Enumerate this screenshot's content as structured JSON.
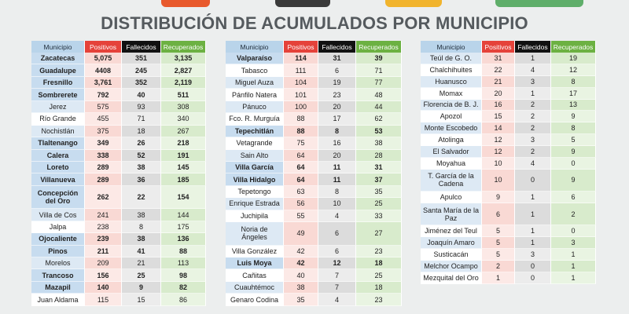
{
  "title": "DISTRIBUCIÓN DE ACUMULADOS POR MUNICIPIO",
  "tables": [
    {
      "headers": [
        "Municipio",
        "Positivos",
        "Fallecidos",
        "Recuperados"
      ],
      "rows": [
        [
          "Zacatecas",
          "5,075",
          "351",
          "3,135"
        ],
        [
          "Guadalupe",
          "4408",
          "245",
          "2,827"
        ],
        [
          "Fresnillo",
          "3,761",
          "352",
          "2,119"
        ],
        [
          "Sombrerete",
          "792",
          "40",
          "511"
        ],
        [
          "Jerez",
          "575",
          "93",
          "308"
        ],
        [
          "Río Grande",
          "455",
          "71",
          "340"
        ],
        [
          "Nochistlán",
          "375",
          "18",
          "267"
        ],
        [
          "Tlaltenango",
          "349",
          "26",
          "218"
        ],
        [
          "Calera",
          "338",
          "52",
          "191"
        ],
        [
          "Loreto",
          "289",
          "38",
          "145"
        ],
        [
          "Villanueva",
          "289",
          "36",
          "185"
        ],
        [
          "Concepción del Oro",
          "262",
          "22",
          "154"
        ],
        [
          "Villa de Cos",
          "241",
          "38",
          "144"
        ],
        [
          "Jalpa",
          "238",
          "8",
          "175"
        ],
        [
          "Ojocaliente",
          "239",
          "38",
          "136"
        ],
        [
          "Pinos",
          "211",
          "41",
          "88"
        ],
        [
          "Morelos",
          "209",
          "21",
          "113"
        ],
        [
          "Trancoso",
          "156",
          "25",
          "98"
        ],
        [
          "Mazapil",
          "140",
          "9",
          "82"
        ],
        [
          "Juan Aldama",
          "115",
          "15",
          "86"
        ]
      ]
    },
    {
      "headers": [
        "Municipio",
        "Positivos",
        "Fallecidos",
        "Recuperados"
      ],
      "rows": [
        [
          "Valparaíso",
          "114",
          "31",
          "39"
        ],
        [
          "Tabasco",
          "111",
          "6",
          "71"
        ],
        [
          "Miguel Auza",
          "104",
          "19",
          "77"
        ],
        [
          "Pánfilo Natera",
          "101",
          "23",
          "48"
        ],
        [
          "Pánuco",
          "100",
          "20",
          "44"
        ],
        [
          "Fco. R. Murguía",
          "88",
          "17",
          "62"
        ],
        [
          "Tepechitlán",
          "88",
          "8",
          "53"
        ],
        [
          "Vetagrande",
          "75",
          "16",
          "38"
        ],
        [
          "Sain Alto",
          "64",
          "20",
          "28"
        ],
        [
          "Villa García",
          "64",
          "11",
          "31"
        ],
        [
          "Villa Hidalgo",
          "64",
          "11",
          "37"
        ],
        [
          "Tepetongo",
          "63",
          "8",
          "35"
        ],
        [
          "Enrique Estrada",
          "56",
          "10",
          "25"
        ],
        [
          "Juchipila",
          "55",
          "4",
          "33"
        ],
        [
          "Noria de Ángeles",
          "49",
          "6",
          "27"
        ],
        [
          "Villa González",
          "42",
          "6",
          "23"
        ],
        [
          "Luis Moya",
          "42",
          "12",
          "18"
        ],
        [
          "Cañitas",
          "40",
          "7",
          "25"
        ],
        [
          "Cuauhtémoc",
          "38",
          "7",
          "18"
        ],
        [
          "Genaro Codina",
          "35",
          "4",
          "23"
        ]
      ]
    },
    {
      "headers": [
        "Municipio",
        "Positivos",
        "Fallecidos",
        "Recuperados"
      ],
      "rows": [
        [
          "Teúl de G. O.",
          "31",
          "1",
          "19"
        ],
        [
          "Chalchihuites",
          "22",
          "4",
          "12"
        ],
        [
          "Huanusco",
          "21",
          "3",
          "8"
        ],
        [
          "Momax",
          "20",
          "1",
          "17"
        ],
        [
          "Florencia de B. J.",
          "16",
          "2",
          "13"
        ],
        [
          "Apozol",
          "15",
          "2",
          "9"
        ],
        [
          "Monte Escobedo",
          "14",
          "2",
          "8"
        ],
        [
          "Atolinga",
          "12",
          "3",
          "5"
        ],
        [
          "El Salvador",
          "12",
          "2",
          "9"
        ],
        [
          "Moyahua",
          "10",
          "4",
          "0"
        ],
        [
          "T. García de la Cadena",
          "10",
          "0",
          "9"
        ],
        [
          "Apulco",
          "9",
          "1",
          "6"
        ],
        [
          "Santa María de la Paz",
          "6",
          "1",
          "2"
        ],
        [
          "Jiménez del Teul",
          "5",
          "1",
          "0"
        ],
        [
          "Joaquín Amaro",
          "5",
          "1",
          "3"
        ],
        [
          "Susticacán",
          "5",
          "3",
          "1"
        ],
        [
          "Melchor Ocampo",
          "2",
          "0",
          "1"
        ],
        [
          "Mezquital del Oro",
          "1",
          "0",
          "1"
        ]
      ]
    }
  ]
}
